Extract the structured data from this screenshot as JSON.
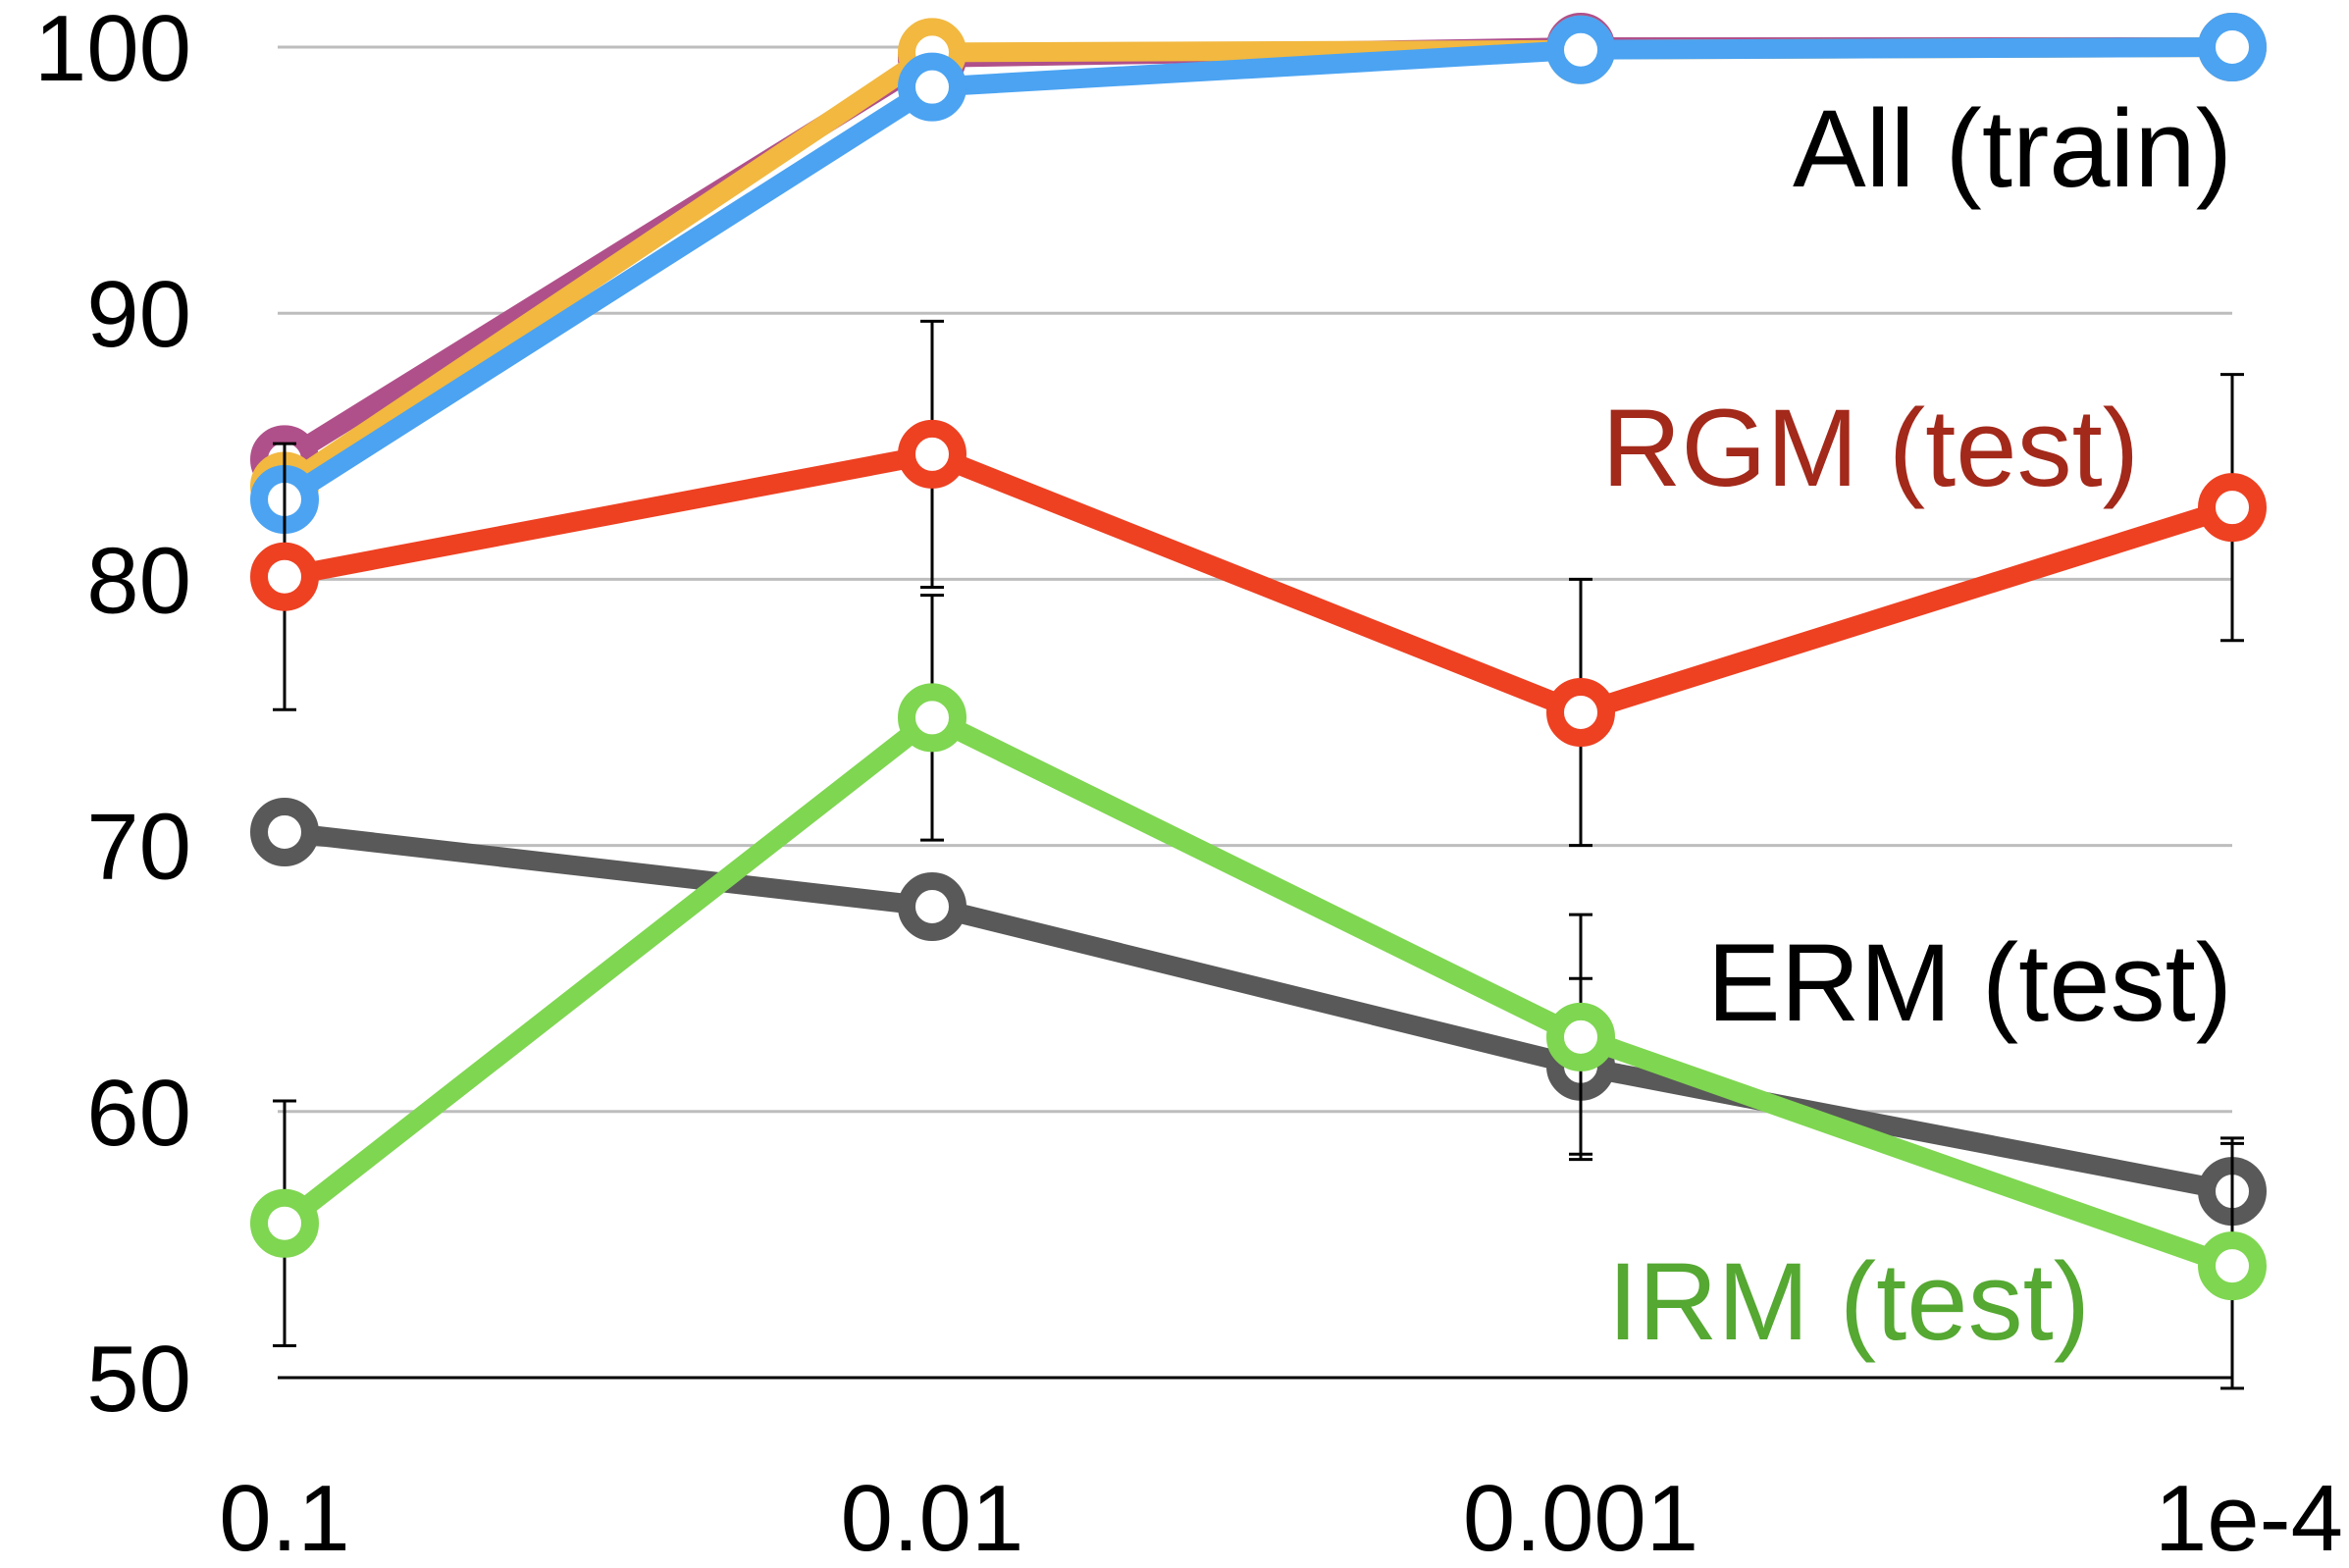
{
  "chart_data": {
    "type": "line",
    "x_categories": [
      "0.1",
      "0.01",
      "0.001",
      "1e-4"
    ],
    "y_ticks": [
      "100",
      "90",
      "80",
      "70",
      "60",
      "50"
    ],
    "ylim": [
      50,
      100
    ],
    "grid": true,
    "series": [
      {
        "name": "",
        "color": "#b0508a",
        "values": [
          84.5,
          99.6,
          100.0,
          100.0
        ]
      },
      {
        "name": "",
        "color": "#f2b840",
        "values": [
          83.5,
          99.8,
          99.9,
          100.0
        ]
      },
      {
        "name": "",
        "color": "#4ba3f2",
        "values": [
          83.0,
          98.5,
          99.9,
          100.0
        ]
      },
      {
        "name": "",
        "color": "#ed4122",
        "values": [
          80.1,
          84.7,
          75.0,
          82.7
        ],
        "errors": [
          5.0,
          5.0,
          5.0,
          5.0
        ]
      },
      {
        "name": "",
        "color": "#595959",
        "values": [
          70.5,
          67.7,
          61.7,
          57.0
        ],
        "errors": [
          1.0,
          1.0,
          3.3,
          2.0
        ]
      },
      {
        "name": "",
        "color": "#7fd651",
        "values": [
          55.8,
          74.8,
          62.8,
          54.2
        ],
        "errors": [
          4.6,
          4.6,
          4.6,
          4.6
        ]
      }
    ],
    "annotations": [
      {
        "text": "All (train)",
        "color": "#000000"
      },
      {
        "text": "RGM (test)",
        "color": "#a3291b"
      },
      {
        "text": "ERM (test)",
        "color": "#000000"
      },
      {
        "text": "IRM (test)",
        "color": "#55a832"
      }
    ]
  }
}
